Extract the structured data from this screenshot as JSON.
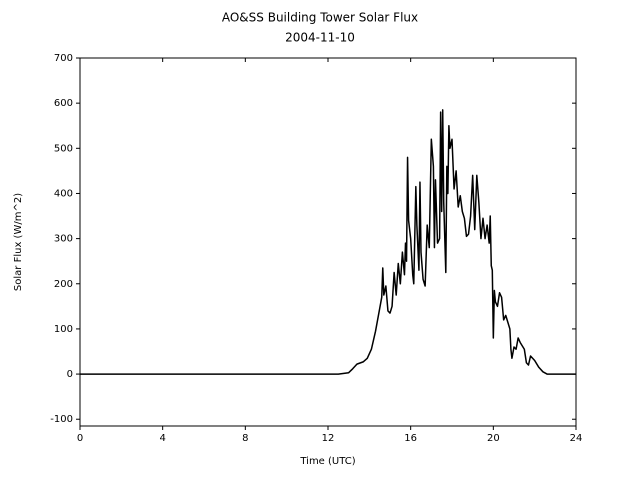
{
  "chart_data": {
    "type": "line",
    "title": "AO&SS Building Tower Solar Flux",
    "subtitle": "2004-11-10",
    "x_label": "Time (UTC)",
    "y_label": "Solar Flux (W/m^2)",
    "x": [
      0,
      12.5,
      13.0,
      13.2,
      13.4,
      13.7,
      13.9,
      14.1,
      14.3,
      14.5,
      14.6,
      14.65,
      14.7,
      14.8,
      14.9,
      15.0,
      15.1,
      15.2,
      15.3,
      15.4,
      15.5,
      15.6,
      15.7,
      15.75,
      15.8,
      15.85,
      15.9,
      16.0,
      16.1,
      16.15,
      16.25,
      16.3,
      16.4,
      16.45,
      16.5,
      16.6,
      16.7,
      16.8,
      16.9,
      17.0,
      17.1,
      17.15,
      17.2,
      17.3,
      17.4,
      17.45,
      17.5,
      17.55,
      17.6,
      17.7,
      17.75,
      17.8,
      17.85,
      17.9,
      18.0,
      18.1,
      18.2,
      18.3,
      18.4,
      18.5,
      18.6,
      18.7,
      18.8,
      18.9,
      19.0,
      19.05,
      19.1,
      19.2,
      19.3,
      19.4,
      19.5,
      19.6,
      19.7,
      19.8,
      19.85,
      19.9,
      19.95,
      20.0,
      20.05,
      20.1,
      20.2,
      20.3,
      20.4,
      20.5,
      20.6,
      20.7,
      20.8,
      20.85,
      20.9,
      21.0,
      21.1,
      21.2,
      21.3,
      21.5,
      21.6,
      21.7,
      21.8,
      22.0,
      22.2,
      22.4,
      22.6,
      24
    ],
    "series": [
      {
        "name": "Solar Flux",
        "color": "#000000",
        "values": [
          0,
          0,
          3,
          12,
          22,
          27,
          35,
          55,
          95,
          145,
          170,
          235,
          175,
          195,
          140,
          135,
          150,
          225,
          175,
          245,
          200,
          270,
          220,
          290,
          250,
          480,
          340,
          300,
          220,
          200,
          415,
          330,
          230,
          425,
          270,
          210,
          195,
          330,
          280,
          520,
          460,
          280,
          430,
          290,
          300,
          580,
          360,
          585,
          380,
          225,
          460,
          400,
          550,
          500,
          520,
          410,
          450,
          370,
          395,
          360,
          345,
          305,
          310,
          350,
          440,
          380,
          320,
          440,
          380,
          300,
          345,
          300,
          330,
          290,
          350,
          240,
          230,
          80,
          185,
          160,
          150,
          180,
          170,
          120,
          130,
          115,
          100,
          55,
          35,
          60,
          55,
          80,
          70,
          55,
          25,
          20,
          40,
          30,
          15,
          5,
          0,
          0
        ]
      }
    ],
    "xlim": [
      0,
      24
    ],
    "xticks": [
      0,
      4,
      8,
      12,
      16,
      20,
      24
    ],
    "ylim": [
      -115,
      700
    ],
    "yticks": [
      -100,
      0,
      100,
      200,
      300,
      400,
      500,
      600,
      700
    ]
  }
}
